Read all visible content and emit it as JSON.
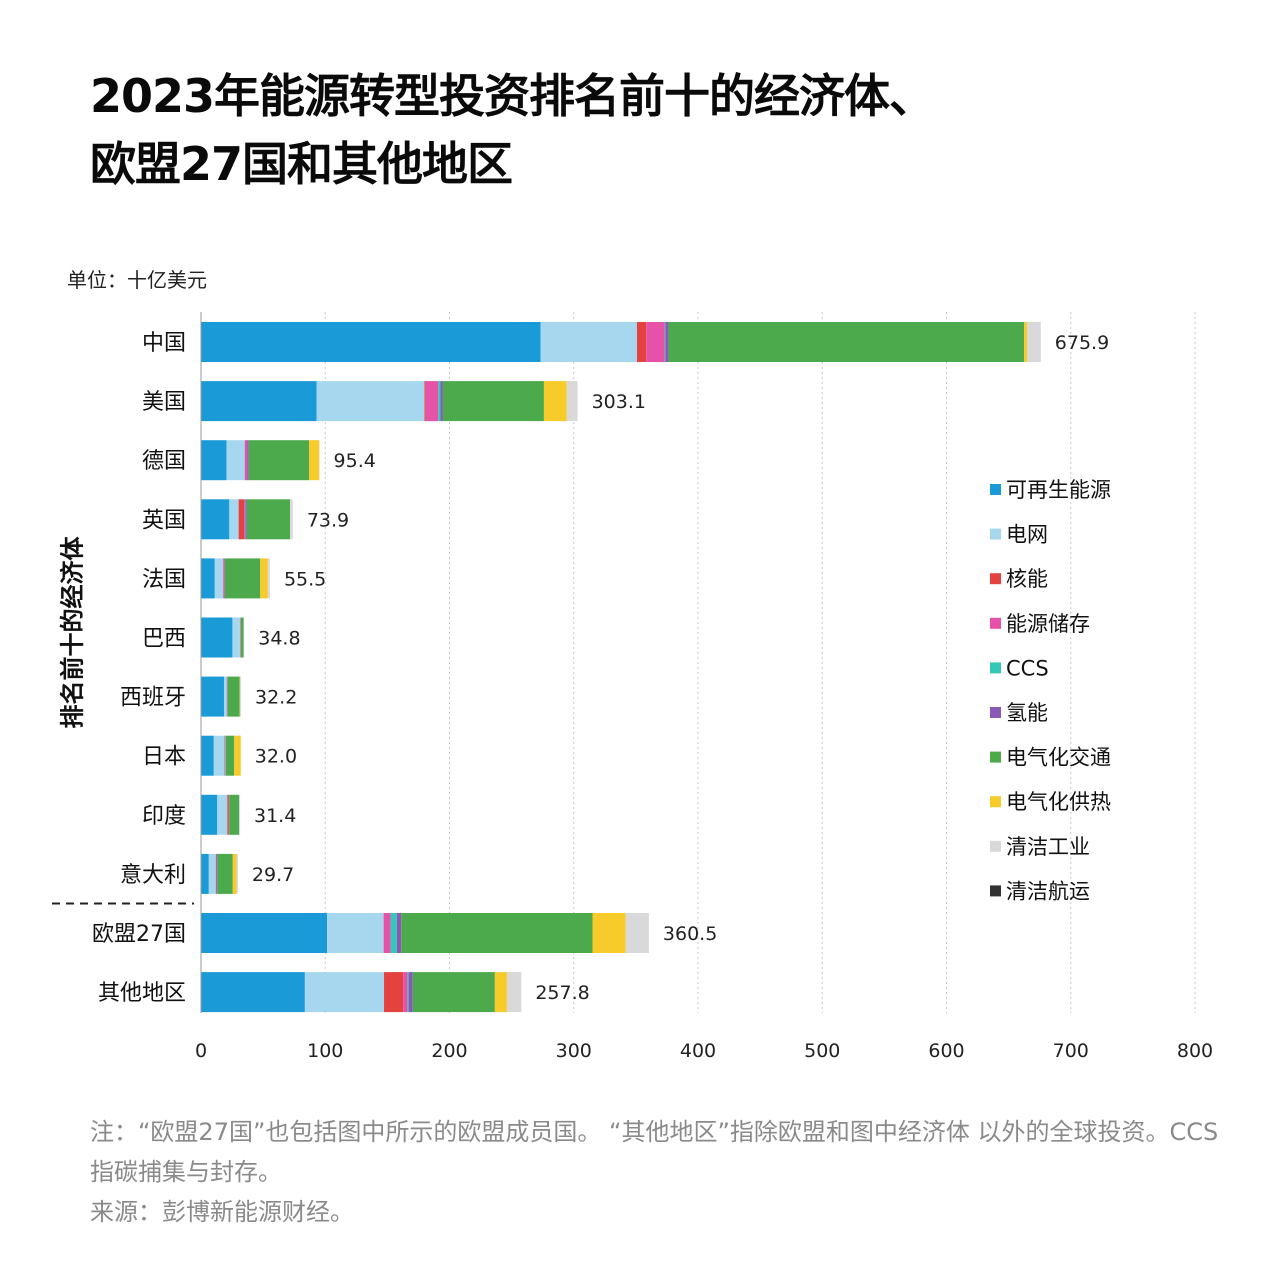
{
  "title_lines": [
    "2023年能源转型投资排名前十的经济体、",
    "欧盟27国和其他地区"
  ],
  "unit_label": "单位：十亿美元",
  "y_axis_group_label": "排名前十的经济体",
  "notes": [
    "注：“欧盟27国”也包括图中所示的欧盟成员国。 “其他地区”指除欧盟和图中经济体 以外的全球投资。CCS指碳捕集与封存。",
    "来源：彭博新能源财经。"
  ],
  "chart_data": {
    "type": "bar",
    "orientation": "horizontal",
    "stacked": true,
    "title": "2023年能源转型投资排名前十的经济体、欧盟27国和其他地区",
    "xlabel": "单位：十亿美元",
    "ylabel": "排名前十的经济体",
    "xlim": [
      0,
      800
    ],
    "xticks": [
      0,
      100,
      200,
      300,
      400,
      500,
      600,
      700,
      800
    ],
    "grid": "x",
    "legend_position": "right",
    "categories": [
      "中国",
      "美国",
      "德国",
      "英国",
      "法国",
      "巴西",
      "西班牙",
      "日本",
      "印度",
      "意大利",
      "欧盟27国",
      "其他地区"
    ],
    "totals": [
      675.9,
      303.1,
      95.4,
      73.9,
      55.5,
      34.8,
      32.2,
      32.0,
      31.4,
      29.7,
      360.5,
      257.8
    ],
    "total_labels": [
      "675.9",
      "303.1",
      "95.4",
      "73.9",
      "55.5",
      "34.8",
      "32.2",
      "32.0",
      "31.4",
      "29.7",
      "360.5",
      "257.8"
    ],
    "series": [
      {
        "name": "可再生能源",
        "color": "#1a9ad7",
        "values": [
          273.3,
          93.1,
          20.5,
          22.8,
          11.1,
          25.3,
          18.5,
          10.3,
          13.1,
          6.3,
          101.5,
          83.6
        ]
      },
      {
        "name": "电网",
        "color": "#a6d7ef",
        "values": [
          77.6,
          86.8,
          14.7,
          7.5,
          6.8,
          6.2,
          2.2,
          8.6,
          8.1,
          5.6,
          45.5,
          63.7
        ]
      },
      {
        "name": "核能",
        "color": "#e4423e",
        "values": [
          7.4,
          0.9,
          0,
          4.4,
          0,
          0,
          0,
          0,
          1.0,
          0,
          0,
          15.4
        ]
      },
      {
        "name": "能源储存",
        "color": "#e552a7",
        "values": [
          14.8,
          10.1,
          1.9,
          0.8,
          1.0,
          0.5,
          0.4,
          0.6,
          0.3,
          0.5,
          5.6,
          3.4
        ]
      },
      {
        "name": "CCS",
        "color": "#35c7b8",
        "values": [
          0.6,
          1.8,
          0,
          0.2,
          0,
          0,
          0,
          0.2,
          0,
          0,
          5.0,
          1.0
        ]
      },
      {
        "name": "氢能",
        "color": "#8a59b8",
        "values": [
          2.5,
          2.0,
          1.3,
          1.0,
          0.3,
          0,
          0.3,
          0.2,
          0.2,
          0.6,
          3.6,
          3.3
        ]
      },
      {
        "name": "电气化交通",
        "color": "#4daa4c",
        "values": [
          286.2,
          81.3,
          48.6,
          35.0,
          28.5,
          2.3,
          9.7,
          6.8,
          8.0,
          12.6,
          153.9,
          66.1
        ]
      },
      {
        "name": "电气化供热",
        "color": "#f7cb2a",
        "values": [
          2.4,
          18.4,
          8.2,
          0,
          6.1,
          0,
          0.3,
          5.3,
          0,
          3.0,
          26.6,
          9.7
        ]
      },
      {
        "name": "清洁工业",
        "color": "#d9d9d9",
        "values": [
          11.1,
          8.7,
          0.2,
          2.2,
          1.7,
          0.5,
          0.8,
          0,
          0.7,
          1.1,
          18.8,
          11.6
        ]
      },
      {
        "name": "清洁航运",
        "color": "#333333",
        "values": [
          0,
          0,
          0,
          0,
          0,
          0,
          0,
          0,
          0,
          0,
          0,
          0
        ]
      }
    ]
  }
}
